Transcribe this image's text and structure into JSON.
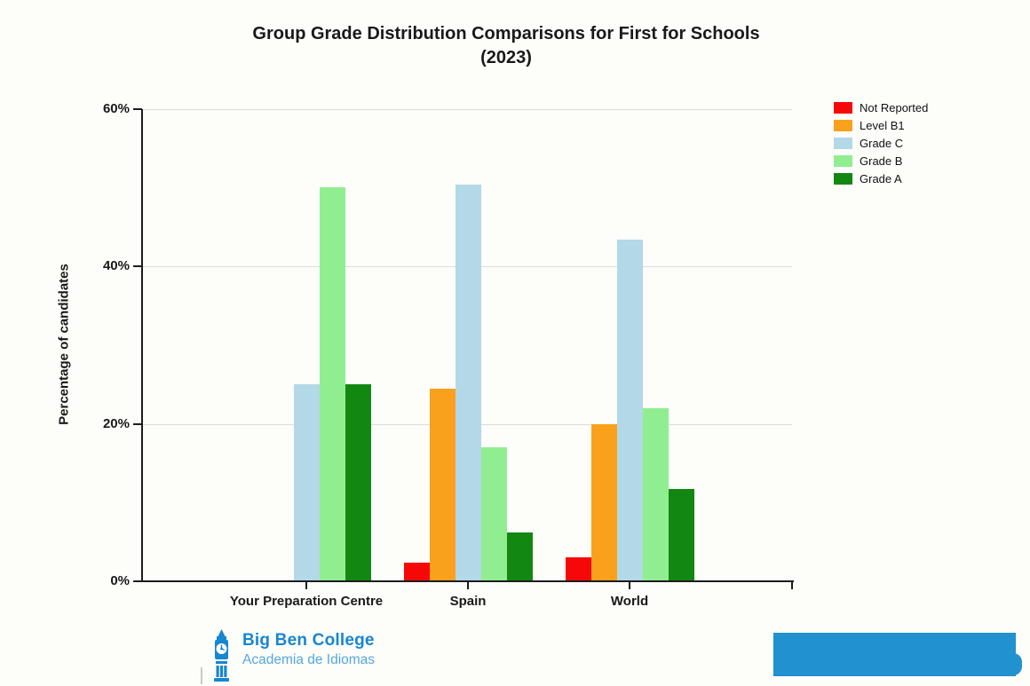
{
  "title": {
    "line1": "Group Grade Distribution Comparisons for First for Schools",
    "line2": "(2023)"
  },
  "y_axis": {
    "label": "Percentage of candidates"
  },
  "chart_data": {
    "type": "bar",
    "title": "Group Grade Distribution Comparisons for First for Schools (2023)",
    "ylabel": "Percentage of candidates",
    "ylim": [
      0,
      60
    ],
    "yticks": [
      0,
      20,
      40,
      60
    ],
    "ytick_labels": [
      "0%",
      "20%",
      "40%",
      "60%"
    ],
    "grid": true,
    "legend_position": "top-right",
    "categories": [
      "Your Preparation Centre",
      "Spain",
      "World"
    ],
    "series": [
      {
        "name": "Not Reported",
        "color": "#f60808",
        "values": [
          0,
          2.4,
          3
        ]
      },
      {
        "name": "Level B1",
        "color": "#f9a11d",
        "values": [
          0,
          24.4,
          20
        ]
      },
      {
        "name": "Grade C",
        "color": "#b3d8e8",
        "values": [
          25,
          50.4,
          43.4
        ]
      },
      {
        "name": "Grade B",
        "color": "#90ee90",
        "values": [
          50,
          17,
          22
        ]
      },
      {
        "name": "Grade A",
        "color": "#128812",
        "values": [
          25,
          6.2,
          11.7
        ]
      }
    ]
  },
  "footer": {
    "logo_title": "Big Ben College",
    "logo_subtitle": "Academia de Idiomas",
    "brand_color": "#1886d0",
    "brand_subtitle_color": "#55a7dd",
    "redacted_box_color": "#2191d0"
  }
}
